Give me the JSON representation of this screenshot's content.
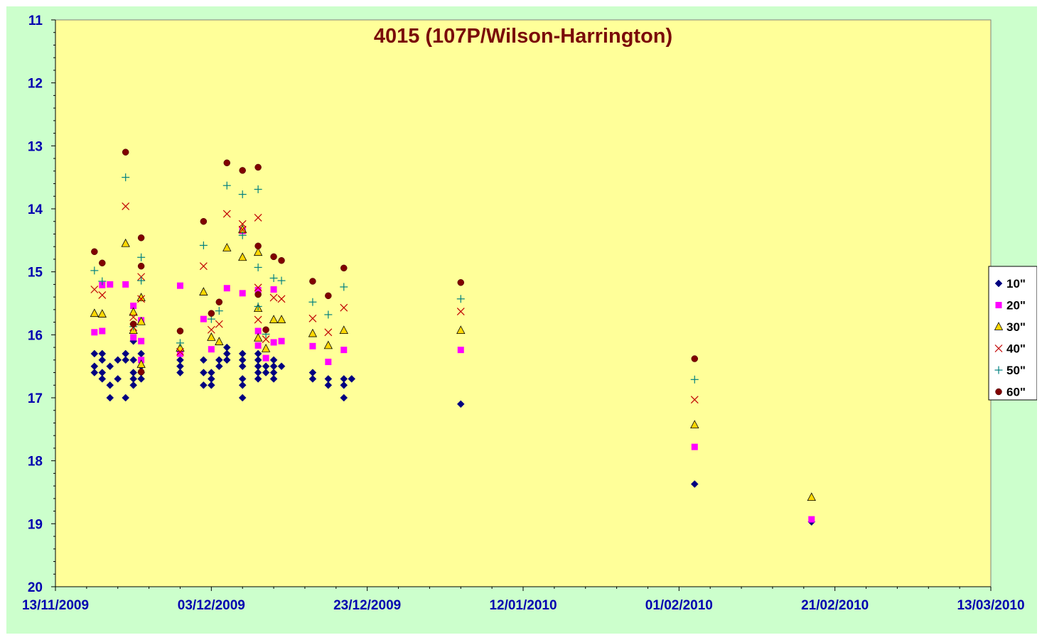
{
  "chart_data": {
    "type": "scatter",
    "title": "4015 (107P/Wilson-Harrington)",
    "xlabel": "",
    "ylabel": "",
    "x_axis_type": "date",
    "xlim": [
      "2009-11-13",
      "2010-03-13"
    ],
    "x_tick_labels": [
      "13/11/2009",
      "03/12/2009",
      "23/12/2009",
      "12/01/2010",
      "01/02/2010",
      "21/02/2010",
      "13/03/2010"
    ],
    "ylim": [
      11,
      20
    ],
    "y_inverted": true,
    "y_tick_labels": [
      "11",
      "12",
      "13",
      "14",
      "15",
      "16",
      "17",
      "18",
      "19",
      "20"
    ],
    "grid": false,
    "legend_position": "right",
    "colors": {
      "page_background": "#ccffcc",
      "plot_background": "#ffff99",
      "title": "#7a0a0a",
      "tick_labels": "#0000b0"
    },
    "series": [
      {
        "name": "10\"",
        "marker": "diamond",
        "color": "#000080",
        "points": [
          [
            "2009-11-18",
            16.3
          ],
          [
            "2009-11-18",
            16.5
          ],
          [
            "2009-11-18",
            16.6
          ],
          [
            "2009-11-19",
            16.3
          ],
          [
            "2009-11-19",
            16.4
          ],
          [
            "2009-11-19",
            16.6
          ],
          [
            "2009-11-19",
            16.7
          ],
          [
            "2009-11-20",
            16.5
          ],
          [
            "2009-11-20",
            16.8
          ],
          [
            "2009-11-20",
            17.0
          ],
          [
            "2009-11-21",
            16.4
          ],
          [
            "2009-11-21",
            16.7
          ],
          [
            "2009-11-22",
            16.3
          ],
          [
            "2009-11-22",
            16.4
          ],
          [
            "2009-11-22",
            17.0
          ],
          [
            "2009-11-23",
            16.1
          ],
          [
            "2009-11-23",
            16.4
          ],
          [
            "2009-11-23",
            16.6
          ],
          [
            "2009-11-23",
            16.7
          ],
          [
            "2009-11-23",
            16.8
          ],
          [
            "2009-11-24",
            16.3
          ],
          [
            "2009-11-24",
            16.5
          ],
          [
            "2009-11-24",
            16.6
          ],
          [
            "2009-11-24",
            16.7
          ],
          [
            "2009-11-29",
            16.4
          ],
          [
            "2009-11-29",
            16.5
          ],
          [
            "2009-11-29",
            16.6
          ],
          [
            "2009-12-02",
            16.4
          ],
          [
            "2009-12-02",
            16.6
          ],
          [
            "2009-12-02",
            16.8
          ],
          [
            "2009-12-03",
            16.6
          ],
          [
            "2009-12-03",
            16.7
          ],
          [
            "2009-12-03",
            16.8
          ],
          [
            "2009-12-04",
            16.4
          ],
          [
            "2009-12-04",
            16.5
          ],
          [
            "2009-12-05",
            16.2
          ],
          [
            "2009-12-05",
            16.3
          ],
          [
            "2009-12-05",
            16.4
          ],
          [
            "2009-12-07",
            16.3
          ],
          [
            "2009-12-07",
            16.4
          ],
          [
            "2009-12-07",
            16.5
          ],
          [
            "2009-12-07",
            16.7
          ],
          [
            "2009-12-07",
            16.8
          ],
          [
            "2009-12-07",
            17.0
          ],
          [
            "2009-12-09",
            16.3
          ],
          [
            "2009-12-09",
            16.4
          ],
          [
            "2009-12-09",
            16.5
          ],
          [
            "2009-12-09",
            16.6
          ],
          [
            "2009-12-09",
            16.7
          ],
          [
            "2009-12-10",
            16.5
          ],
          [
            "2009-12-10",
            16.6
          ],
          [
            "2009-12-11",
            16.4
          ],
          [
            "2009-12-11",
            16.5
          ],
          [
            "2009-12-11",
            16.6
          ],
          [
            "2009-12-11",
            16.7
          ],
          [
            "2009-12-12",
            16.5
          ],
          [
            "2009-12-16",
            16.6
          ],
          [
            "2009-12-16",
            16.7
          ],
          [
            "2009-12-18",
            16.7
          ],
          [
            "2009-12-18",
            16.8
          ],
          [
            "2009-12-20",
            16.7
          ],
          [
            "2009-12-20",
            16.8
          ],
          [
            "2009-12-20",
            17.0
          ],
          [
            "2009-12-21",
            16.7
          ],
          [
            "2010-01-04",
            17.1
          ],
          [
            "2010-02-03",
            18.37
          ],
          [
            "2010-02-18",
            18.97
          ]
        ]
      },
      {
        "name": "20\"",
        "marker": "square",
        "color": "#ff00ff",
        "points": [
          [
            "2009-11-18",
            15.96
          ],
          [
            "2009-11-19",
            15.21
          ],
          [
            "2009-11-19",
            15.94
          ],
          [
            "2009-11-20",
            15.2
          ],
          [
            "2009-11-22",
            15.2
          ],
          [
            "2009-11-23",
            15.54
          ],
          [
            "2009-11-23",
            16.04
          ],
          [
            "2009-11-24",
            15.77
          ],
          [
            "2009-11-24",
            16.1
          ],
          [
            "2009-11-24",
            16.4
          ],
          [
            "2009-11-29",
            15.22
          ],
          [
            "2009-11-29",
            16.3
          ],
          [
            "2009-12-02",
            15.75
          ],
          [
            "2009-12-03",
            16.23
          ],
          [
            "2009-12-05",
            15.26
          ],
          [
            "2009-12-07",
            15.34
          ],
          [
            "2009-12-07",
            14.35
          ],
          [
            "2009-12-09",
            15.29
          ],
          [
            "2009-12-09",
            15.94
          ],
          [
            "2009-12-09",
            16.17
          ],
          [
            "2009-12-10",
            16.37
          ],
          [
            "2009-12-11",
            15.28
          ],
          [
            "2009-12-11",
            16.12
          ],
          [
            "2009-12-12",
            16.1
          ],
          [
            "2009-12-16",
            16.18
          ],
          [
            "2009-12-18",
            16.43
          ],
          [
            "2009-12-20",
            16.24
          ],
          [
            "2010-01-04",
            16.24
          ],
          [
            "2010-02-03",
            17.78
          ],
          [
            "2010-02-18",
            18.93
          ]
        ]
      },
      {
        "name": "30\"",
        "marker": "triangle",
        "color": "#ffd700",
        "points": [
          [
            "2009-11-18",
            15.66
          ],
          [
            "2009-11-19",
            15.67
          ],
          [
            "2009-11-22",
            14.55
          ],
          [
            "2009-11-23",
            15.64
          ],
          [
            "2009-11-23",
            15.93
          ],
          [
            "2009-11-24",
            15.41
          ],
          [
            "2009-11-24",
            15.79
          ],
          [
            "2009-11-24",
            16.47
          ],
          [
            "2009-11-29",
            16.21
          ],
          [
            "2009-12-02",
            15.32
          ],
          [
            "2009-12-03",
            16.04
          ],
          [
            "2009-12-04",
            16.11
          ],
          [
            "2009-12-05",
            14.62
          ],
          [
            "2009-12-07",
            14.77
          ],
          [
            "2009-12-07",
            14.33
          ],
          [
            "2009-12-09",
            14.69
          ],
          [
            "2009-12-09",
            15.58
          ],
          [
            "2009-12-09",
            16.05
          ],
          [
            "2009-12-10",
            16.22
          ],
          [
            "2009-12-11",
            15.76
          ],
          [
            "2009-12-12",
            15.76
          ],
          [
            "2009-12-16",
            15.98
          ],
          [
            "2009-12-18",
            16.17
          ],
          [
            "2009-12-20",
            15.93
          ],
          [
            "2010-01-04",
            15.93
          ],
          [
            "2010-02-03",
            17.43
          ],
          [
            "2010-02-18",
            18.58
          ]
        ]
      },
      {
        "name": "40\"",
        "marker": "x",
        "color": "#c00000",
        "points": [
          [
            "2009-11-18",
            15.28
          ],
          [
            "2009-11-19",
            15.37
          ],
          [
            "2009-11-22",
            13.96
          ],
          [
            "2009-11-23",
            15.72
          ],
          [
            "2009-11-23",
            15.88
          ],
          [
            "2009-11-24",
            15.08
          ],
          [
            "2009-11-24",
            15.43
          ],
          [
            "2009-11-29",
            16.27
          ],
          [
            "2009-12-02",
            14.91
          ],
          [
            "2009-12-03",
            15.92
          ],
          [
            "2009-12-04",
            15.83
          ],
          [
            "2009-12-05",
            14.08
          ],
          [
            "2009-12-07",
            14.24
          ],
          [
            "2009-12-07",
            14.33
          ],
          [
            "2009-12-09",
            14.14
          ],
          [
            "2009-12-09",
            15.25
          ],
          [
            "2009-12-09",
            15.76
          ],
          [
            "2009-12-10",
            16.07
          ],
          [
            "2009-12-11",
            15.41
          ],
          [
            "2009-12-12",
            15.43
          ],
          [
            "2009-12-16",
            15.74
          ],
          [
            "2009-12-18",
            15.96
          ],
          [
            "2009-12-20",
            15.57
          ],
          [
            "2010-01-04",
            15.63
          ],
          [
            "2010-02-03",
            17.03
          ]
        ]
      },
      {
        "name": "50\"",
        "marker": "plus",
        "color": "#008080",
        "points": [
          [
            "2009-11-18",
            14.98
          ],
          [
            "2009-11-19",
            15.15
          ],
          [
            "2009-11-22",
            13.5
          ],
          [
            "2009-11-23",
            15.87
          ],
          [
            "2009-11-24",
            14.77
          ],
          [
            "2009-11-24",
            15.14
          ],
          [
            "2009-11-29",
            16.13
          ],
          [
            "2009-12-02",
            14.58
          ],
          [
            "2009-12-03",
            15.75
          ],
          [
            "2009-12-04",
            15.62
          ],
          [
            "2009-12-05",
            13.63
          ],
          [
            "2009-12-07",
            13.77
          ],
          [
            "2009-12-07",
            14.42
          ],
          [
            "2009-12-09",
            13.69
          ],
          [
            "2009-12-09",
            14.93
          ],
          [
            "2009-12-09",
            15.55
          ],
          [
            "2009-12-10",
            15.99
          ],
          [
            "2009-12-11",
            15.1
          ],
          [
            "2009-12-12",
            15.14
          ],
          [
            "2009-12-16",
            15.48
          ],
          [
            "2009-12-18",
            15.68
          ],
          [
            "2009-12-20",
            15.24
          ],
          [
            "2010-01-04",
            15.43
          ],
          [
            "2010-02-03",
            16.71
          ]
        ]
      },
      {
        "name": "60\"",
        "marker": "circle",
        "color": "#800000",
        "points": [
          [
            "2009-11-18",
            14.68
          ],
          [
            "2009-11-19",
            14.86
          ],
          [
            "2009-11-22",
            13.1
          ],
          [
            "2009-11-23",
            15.83
          ],
          [
            "2009-11-24",
            14.46
          ],
          [
            "2009-11-24",
            14.91
          ],
          [
            "2009-11-24",
            16.59
          ],
          [
            "2009-11-29",
            15.94
          ],
          [
            "2009-12-02",
            14.2
          ],
          [
            "2009-12-03",
            15.66
          ],
          [
            "2009-12-04",
            15.48
          ],
          [
            "2009-12-05",
            13.27
          ],
          [
            "2009-12-07",
            13.39
          ],
          [
            "2009-12-09",
            13.34
          ],
          [
            "2009-12-09",
            14.59
          ],
          [
            "2009-12-09",
            15.36
          ],
          [
            "2009-12-10",
            15.92
          ],
          [
            "2009-12-11",
            14.76
          ],
          [
            "2009-12-12",
            14.82
          ],
          [
            "2009-12-16",
            15.15
          ],
          [
            "2009-12-18",
            15.38
          ],
          [
            "2009-12-20",
            14.94
          ],
          [
            "2010-01-04",
            15.17
          ],
          [
            "2010-02-03",
            16.38
          ]
        ]
      }
    ]
  }
}
